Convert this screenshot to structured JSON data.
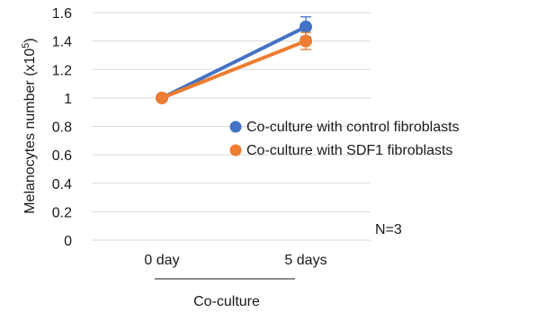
{
  "chart_data": {
    "type": "line",
    "categories": [
      "0 day",
      "5 days"
    ],
    "ylabel_main": "Melanocytes number (x10",
    "ylabel_sup": "5",
    "ylabel_close": ")",
    "xgroup_label": "Co-culture",
    "annotation": "N=3",
    "ylim": [
      0,
      1.6
    ],
    "yticks": [
      "0",
      "0.2",
      "0.4",
      "0.6",
      "0.8",
      "1",
      "1.2",
      "1.4",
      "1.6"
    ],
    "grid": true,
    "legend_position": "right",
    "series": [
      {
        "name": "Co-culture with control fibroblasts",
        "values": [
          1.0,
          1.5
        ],
        "errors": [
          0.0,
          0.07
        ],
        "color": "#4472c4"
      },
      {
        "name": "Co-culture with SDF1 fibroblasts",
        "values": [
          1.0,
          1.4
        ],
        "errors": [
          0.0,
          0.06
        ],
        "color": "#ed7d31"
      }
    ]
  }
}
